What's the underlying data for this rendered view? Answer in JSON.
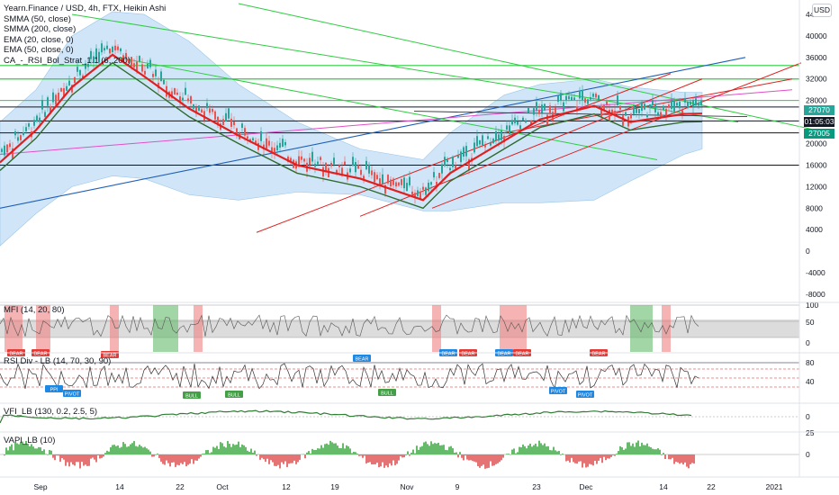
{
  "header": {
    "title": "Yearn.Finance / USD, 4h, FTX, Heikin Ashi",
    "indicators": [
      "SMMA (50, close)",
      "SMMA (200, close)",
      "EMA (20, close, 0)",
      "EMA (50, close, 0)",
      "CA_-_RSI_Bol_Strat_1.1 (6, 200)"
    ],
    "currency_button": "USD"
  },
  "price_tags": [
    {
      "text": "27070",
      "color": "#26a69a"
    },
    {
      "text": "01:05:03",
      "color": "#131722"
    },
    {
      "text": "27005",
      "color": "#089981"
    }
  ],
  "panes": {
    "mfi": {
      "title": "MFI (14, 20, 80)",
      "ticks": [
        "100",
        "50",
        "0"
      ]
    },
    "rsi": {
      "title": "RSI Div - LB (14, 70, 30, 90)",
      "ticks": [
        "80",
        "40"
      ]
    },
    "vfi": {
      "title": "VFI_LB (130, 0.2, 2.5, 5)",
      "ticks": [
        "0"
      ]
    },
    "vapi": {
      "title": "VAPI_LB (10)",
      "ticks": [
        "25",
        "0"
      ]
    }
  },
  "signals": {
    "bear": "BEAR",
    "bull": "BULL",
    "pivot": "PIVOT",
    "ppi": "PPI"
  },
  "chart_data": {
    "type": "line",
    "title": "Yearn.Finance / USD, 4h, FTX, Heikin Ashi",
    "y_ticks": [
      44000,
      40000,
      36000,
      32000,
      28000,
      24000,
      20000,
      16000,
      12000,
      8000,
      4000,
      0,
      -4000,
      -8000
    ],
    "ylim": [
      -9000,
      46000
    ],
    "x_ticks": [
      "Sep",
      "14",
      "22",
      "Oct",
      "12",
      "19",
      "Nov",
      "9",
      "23",
      "Dec",
      "14",
      "22",
      "2021"
    ],
    "x": [
      "Sep",
      "14",
      "22",
      "Oct",
      "12",
      "19",
      "Nov",
      "9",
      "23",
      "Dec",
      "14"
    ],
    "series": [
      {
        "values": [
          23000,
          34000,
          38000,
          29000,
          22000,
          16500,
          14500,
          11000,
          25000,
          26500,
          26800
        ]
      },
      {
        "values": [
          21000,
          32000,
          35000,
          28000,
          23000,
          17500,
          14000,
          12500,
          23000,
          26000,
          26500
        ]
      }
    ],
    "last_price": 27070
  }
}
